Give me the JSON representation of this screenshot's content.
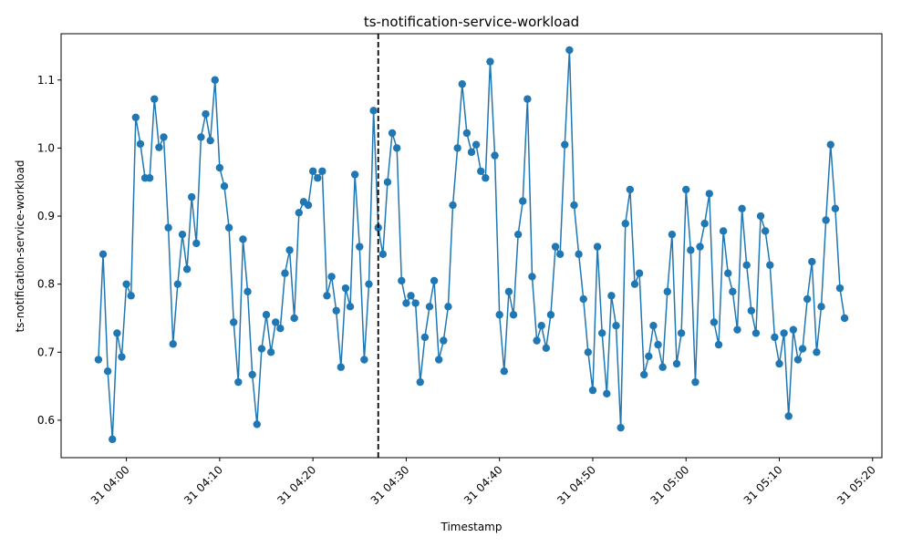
{
  "chart_data": {
    "type": "line",
    "title": "ts-notification-service-workload",
    "xlabel": "Timestamp",
    "ylabel": "ts-notification-service-workload",
    "x_start": "31 03:57",
    "x_step_minutes": 0.5,
    "xlim": [
      "31 03:53",
      "31 05:21"
    ],
    "ylim": [
      0.545,
      1.168
    ],
    "x_ticks": [
      "31 04:00",
      "31 04:10",
      "31 04:20",
      "31 04:30",
      "31 04:40",
      "31 04:50",
      "31 05:00",
      "31 05:10",
      "31 05:20"
    ],
    "y_ticks": [
      "0.6",
      "0.7",
      "0.8",
      "0.9",
      "1.0",
      "1.1"
    ],
    "marker_line": "31 04:27",
    "line_color": "#1f77b4",
    "marker_line_color": "#000000",
    "grid": false,
    "series": [
      {
        "values": [
          0.689,
          0.844,
          0.672,
          0.572,
          0.728,
          0.693,
          0.8,
          0.783,
          1.045,
          1.006,
          0.956,
          0.956,
          1.072,
          1.001,
          1.016,
          0.883,
          0.712,
          0.8,
          0.873,
          0.822,
          0.928,
          0.86,
          1.016,
          1.05,
          1.011,
          1.1,
          0.971,
          0.944,
          0.883,
          0.744,
          0.656,
          0.866,
          0.789,
          0.667,
          0.594,
          0.705,
          0.755,
          0.7,
          0.744,
          0.735,
          0.816,
          0.85,
          0.75,
          0.905,
          0.921,
          0.916,
          0.966,
          0.956,
          0.966,
          0.783,
          0.811,
          0.761,
          0.678,
          0.794,
          0.767,
          0.961,
          0.855,
          0.689,
          0.8,
          1.055,
          0.883,
          0.844,
          0.95,
          1.022,
          1.0,
          0.805,
          0.772,
          0.783,
          0.772,
          0.656,
          0.722,
          0.767,
          0.805,
          0.689,
          0.717,
          0.767,
          0.916,
          1.0,
          1.094,
          1.022,
          0.994,
          1.005,
          0.966,
          0.956,
          1.127,
          0.989,
          0.755,
          0.672,
          0.789,
          0.755,
          0.873,
          0.922,
          1.072,
          0.811,
          0.717,
          0.739,
          0.706,
          0.755,
          0.855,
          0.844,
          1.005,
          1.144,
          0.916,
          0.844,
          0.778,
          0.7,
          0.644,
          0.855,
          0.728,
          0.639,
          0.783,
          0.739,
          0.589,
          0.889,
          0.939,
          0.8,
          0.816,
          0.667,
          0.694,
          0.739,
          0.711,
          0.678,
          0.789,
          0.873,
          0.683,
          0.728,
          0.939,
          0.85,
          0.656,
          0.855,
          0.889,
          0.933,
          0.744,
          0.711,
          0.878,
          0.816,
          0.789,
          0.733,
          0.911,
          0.828,
          0.761,
          0.728,
          0.9,
          0.878,
          0.828,
          0.722,
          0.683,
          0.728,
          0.606,
          0.733,
          0.689,
          0.705,
          0.778,
          0.833,
          0.7,
          0.767,
          0.894,
          1.005,
          0.911,
          0.794,
          0.75
        ]
      }
    ]
  }
}
